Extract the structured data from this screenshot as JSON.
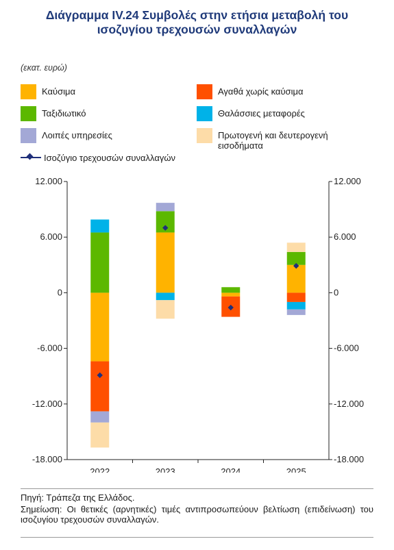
{
  "title_line1": "Διάγραμμα IV.24 Συμβολές στην ετήσια μεταβολή του",
  "title_line2": "ισοζυγίου τρεχουσών συναλλαγών",
  "unit_label": "(εκατ. ευρώ)",
  "footnotes": {
    "source": "Πηγή: Τράπεζα της Ελλάδος.",
    "note": "Σημείωση: Οι θετικές (αρνητικές) τιμές αντιπροσωπεύουν βελτίωση (επιδείνωση) του ισοζυγίου τρεχουσών συναλλαγών."
  },
  "chart_data": {
    "type": "bar",
    "stacked": true,
    "categories": [
      "2022",
      "2023",
      "2024",
      "2025"
    ],
    "ylim": [
      -18000,
      12000
    ],
    "yticks": [
      12000,
      6000,
      0,
      -6000,
      -12000,
      -18000
    ],
    "ytick_labels": [
      "12.000",
      "6.000",
      "0",
      "-6.000",
      "-12.000",
      "-18.000"
    ],
    "dual_axis": true,
    "legend_position": "top",
    "series": [
      {
        "name": "Καύσιμα",
        "color": "#FFB300",
        "values": [
          -7400,
          6500,
          -400,
          3000
        ]
      },
      {
        "name": "Αγαθά χωρίς καύσιμα",
        "color": "#FF5000",
        "values": [
          -5400,
          0,
          -2200,
          -1000
        ]
      },
      {
        "name": "Ταξιδιωτικό",
        "color": "#5CB800",
        "values": [
          6500,
          2300,
          600,
          1400
        ]
      },
      {
        "name": "Θαλάσσιες μεταφορές",
        "color": "#00B2E8",
        "values": [
          1400,
          -800,
          0,
          -800
        ]
      },
      {
        "name": "Λοιπές υπηρεσίες",
        "color": "#A3A8D6",
        "values": [
          -1200,
          900,
          0,
          -600
        ]
      },
      {
        "name": "Πρωτογενή και δευτερογενή εισοδήματα",
        "color": "#FDDCA8",
        "values": [
          -2700,
          -2000,
          0,
          1000
        ]
      }
    ],
    "line_series": {
      "name": "Ισοζύγιο τρεχουσών συναλλαγών",
      "color": "#1f2f7a",
      "values": [
        -8900,
        7000,
        -1600,
        2900
      ]
    }
  }
}
